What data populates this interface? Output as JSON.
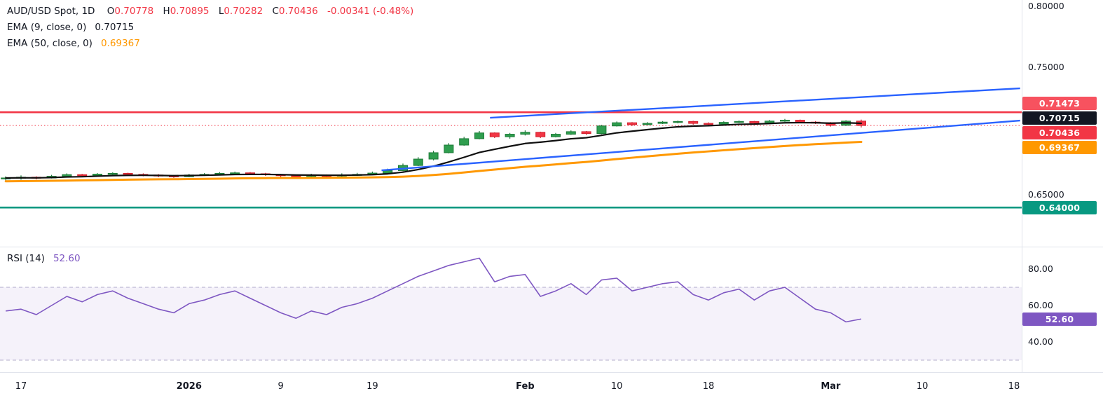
{
  "header": {
    "title": "AUD/USD Spot, 1D",
    "ohlc": {
      "o_label": "O",
      "o": "0.70778",
      "h_label": "H",
      "h": "0.70895",
      "l_label": "L",
      "l": "0.70282",
      "c_label": "C",
      "c": "0.70436",
      "change": "-0.00341 (-0.48%)"
    },
    "indicators": [
      {
        "label": "EMA (9, close, 0)",
        "value": "0.70715"
      },
      {
        "label": "EMA (50, close, 0)",
        "value": "0.69367"
      }
    ]
  },
  "rsi_legend": {
    "label": "RSI (14)",
    "value": "52.60"
  },
  "colors": {
    "up": "#2f9e4f",
    "up_border": "#1d7a38",
    "down": "#f23645",
    "down_border": "#d1222f",
    "ema9": "#0f0f0f",
    "ema50": "#ff9800",
    "trendline": "#2962ff",
    "resistance_line": "#f23645",
    "resistance_badge": "#f7525f",
    "last_price": "#f23645",
    "support_line": "#089981",
    "rsi": "#7e57c2",
    "text": "#131722",
    "axis_border": "#e0e3eb",
    "rsi_band_fill": "rgba(126,87,194,0.08)",
    "rsi_band_border": "rgba(118,110,160,0.55)"
  },
  "chart_data": [
    {
      "type": "candlestick",
      "symbol": "AUD/USD Spot",
      "interval": "1D",
      "last_bar": {
        "open": 0.70778,
        "high": 0.70895,
        "low": 0.70282,
        "close": 0.70436,
        "change": -0.00341,
        "change_pct": -0.48
      },
      "ohlc": [
        [
          0.6628,
          0.6645,
          0.661,
          0.6632
        ],
        [
          0.6632,
          0.6652,
          0.6618,
          0.6638
        ],
        [
          0.6638,
          0.6645,
          0.6621,
          0.6632
        ],
        [
          0.6632,
          0.6656,
          0.6628,
          0.6645
        ],
        [
          0.6645,
          0.6668,
          0.664,
          0.6658
        ],
        [
          0.6658,
          0.6664,
          0.6639,
          0.665
        ],
        [
          0.665,
          0.667,
          0.6645,
          0.6662
        ],
        [
          0.6662,
          0.6676,
          0.6655,
          0.6668
        ],
        [
          0.6668,
          0.6673,
          0.665,
          0.666
        ],
        [
          0.666,
          0.6668,
          0.6645,
          0.6655
        ],
        [
          0.6655,
          0.6662,
          0.6638,
          0.6648
        ],
        [
          0.6648,
          0.6656,
          0.6633,
          0.6642
        ],
        [
          0.6642,
          0.6664,
          0.6638,
          0.6655
        ],
        [
          0.6655,
          0.667,
          0.6648,
          0.666
        ],
        [
          0.666,
          0.6678,
          0.6655,
          0.6668
        ],
        [
          0.6668,
          0.6682,
          0.666,
          0.6672
        ],
        [
          0.6672,
          0.6678,
          0.6656,
          0.6665
        ],
        [
          0.6665,
          0.6672,
          0.6648,
          0.6658
        ],
        [
          0.6658,
          0.6664,
          0.664,
          0.665
        ],
        [
          0.665,
          0.6658,
          0.6635,
          0.6645
        ],
        [
          0.6645,
          0.6665,
          0.664,
          0.6652
        ],
        [
          0.6652,
          0.666,
          0.6638,
          0.6648
        ],
        [
          0.6648,
          0.6668,
          0.6642,
          0.6655
        ],
        [
          0.6655,
          0.6672,
          0.6648,
          0.666
        ],
        [
          0.666,
          0.6682,
          0.6655,
          0.667
        ],
        [
          0.667,
          0.6705,
          0.6665,
          0.669
        ],
        [
          0.669,
          0.6745,
          0.6685,
          0.673
        ],
        [
          0.673,
          0.6795,
          0.6725,
          0.678
        ],
        [
          0.678,
          0.6845,
          0.677,
          0.683
        ],
        [
          0.683,
          0.6905,
          0.6825,
          0.689
        ],
        [
          0.689,
          0.6955,
          0.6885,
          0.694
        ],
        [
          0.694,
          0.7,
          0.6935,
          0.6985
        ],
        [
          0.6985,
          0.699,
          0.6945,
          0.6955
        ],
        [
          0.6955,
          0.6985,
          0.694,
          0.6975
        ],
        [
          0.6975,
          0.7005,
          0.6965,
          0.699
        ],
        [
          0.699,
          0.6995,
          0.6945,
          0.6955
        ],
        [
          0.6955,
          0.6985,
          0.695,
          0.6975
        ],
        [
          0.6975,
          0.7005,
          0.697,
          0.6995
        ],
        [
          0.6995,
          0.7,
          0.697,
          0.698
        ],
        [
          0.698,
          0.7048,
          0.6975,
          0.704
        ],
        [
          0.704,
          0.7075,
          0.7035,
          0.7065
        ],
        [
          0.7065,
          0.707,
          0.704,
          0.705
        ],
        [
          0.705,
          0.707,
          0.7045,
          0.706
        ],
        [
          0.706,
          0.7078,
          0.7055,
          0.707
        ],
        [
          0.707,
          0.7082,
          0.706,
          0.7075
        ],
        [
          0.7075,
          0.708,
          0.705,
          0.706
        ],
        [
          0.706,
          0.7068,
          0.7045,
          0.7055
        ],
        [
          0.7055,
          0.7076,
          0.705,
          0.7068
        ],
        [
          0.7068,
          0.7083,
          0.7062,
          0.7075
        ],
        [
          0.7075,
          0.7079,
          0.7053,
          0.7062
        ],
        [
          0.7062,
          0.7087,
          0.7058,
          0.7078
        ],
        [
          0.7078,
          0.7095,
          0.7072,
          0.7085
        ],
        [
          0.7085,
          0.709,
          0.7062,
          0.707
        ],
        [
          0.707,
          0.7078,
          0.7055,
          0.7065
        ],
        [
          0.7065,
          0.707,
          0.7035,
          0.7045
        ],
        [
          0.7045,
          0.7085,
          0.704,
          0.70777
        ],
        [
          0.70778,
          0.70895,
          0.70282,
          0.70436
        ]
      ],
      "indicators": {
        "ema9_period": 9,
        "ema9_last": 0.70715,
        "ema50_period": 50,
        "ema50_last": 0.69367
      },
      "overlays": {
        "horizontal_lines": [
          {
            "price": 0.71473,
            "style": "solid",
            "color_key": "resistance_line",
            "width": 2.6,
            "badge": "0.71473",
            "badge_color_key": "resistance_badge"
          },
          {
            "price": 0.70436,
            "style": "dotted",
            "color_key": "last_price",
            "width": 1,
            "badge": "0.70436",
            "badge_color_key": "last_price"
          },
          {
            "price": 0.64,
            "style": "solid",
            "color_key": "support_line",
            "width": 2.6,
            "badge": "0.64000",
            "badge_color_key": "support_line"
          }
        ],
        "ema_badges": [
          {
            "price": 0.70715,
            "badge": "0.70715",
            "color": "#131722"
          },
          {
            "price": 0.69367,
            "badge": "0.69367",
            "color": "#ff9800"
          }
        ],
        "trendlines": [
          {
            "name": "channel-upper",
            "b1": 31.7,
            "p1": 0.7104,
            "b2": 66.4,
            "p2": 0.7335
          },
          {
            "name": "channel-lower",
            "b1": 24.6,
            "p1": 0.6692,
            "b2": 66.4,
            "p2": 0.7082
          }
        ]
      },
      "y_axis": {
        "visible_labels": [
          {
            "text": "0.80000",
            "price": 0.8
          },
          {
            "text": "0.75000",
            "price": 0.75
          },
          {
            "text": "0.65000",
            "price": 0.65
          }
        ],
        "range_hint": [
          0.615,
          0.806
        ]
      }
    },
    {
      "type": "line",
      "name": "RSI (14)",
      "period": 14,
      "values": [
        57,
        58,
        55,
        60,
        65,
        62,
        66,
        68,
        64,
        61,
        58,
        56,
        61,
        63,
        66,
        68,
        64,
        60,
        56,
        53,
        57,
        55,
        59,
        61,
        64,
        68,
        72,
        76,
        79,
        82,
        84,
        86,
        73,
        76,
        77,
        65,
        68,
        72,
        66,
        74,
        75,
        68,
        70,
        72,
        73,
        66,
        63,
        67,
        69,
        63,
        68,
        70,
        64,
        58,
        56,
        51,
        52.6
      ],
      "last_value": 52.6,
      "bands": {
        "upper": 70,
        "lower": 30
      },
      "y_axis": {
        "visible_labels": [
          {
            "text": "80.00",
            "value": 80
          },
          {
            "text": "60.00",
            "value": 60
          },
          {
            "text": "40.00",
            "value": 40
          }
        ]
      },
      "badge": {
        "text": "52.60"
      }
    }
  ],
  "x_axis": {
    "ticks": [
      {
        "label": "17",
        "bar": 1
      },
      {
        "label": "2026",
        "bar": 12,
        "bold": true
      },
      {
        "label": "9",
        "bar": 18
      },
      {
        "label": "19",
        "bar": 24
      },
      {
        "label": "Feb",
        "bar": 34,
        "bold": true
      },
      {
        "label": "10",
        "bar": 40
      },
      {
        "label": "18",
        "bar": 46
      },
      {
        "label": "Mar",
        "bar": 54,
        "bold": true
      },
      {
        "label": "10",
        "bar": 60
      },
      {
        "label": "18",
        "bar": 66
      }
    ]
  }
}
